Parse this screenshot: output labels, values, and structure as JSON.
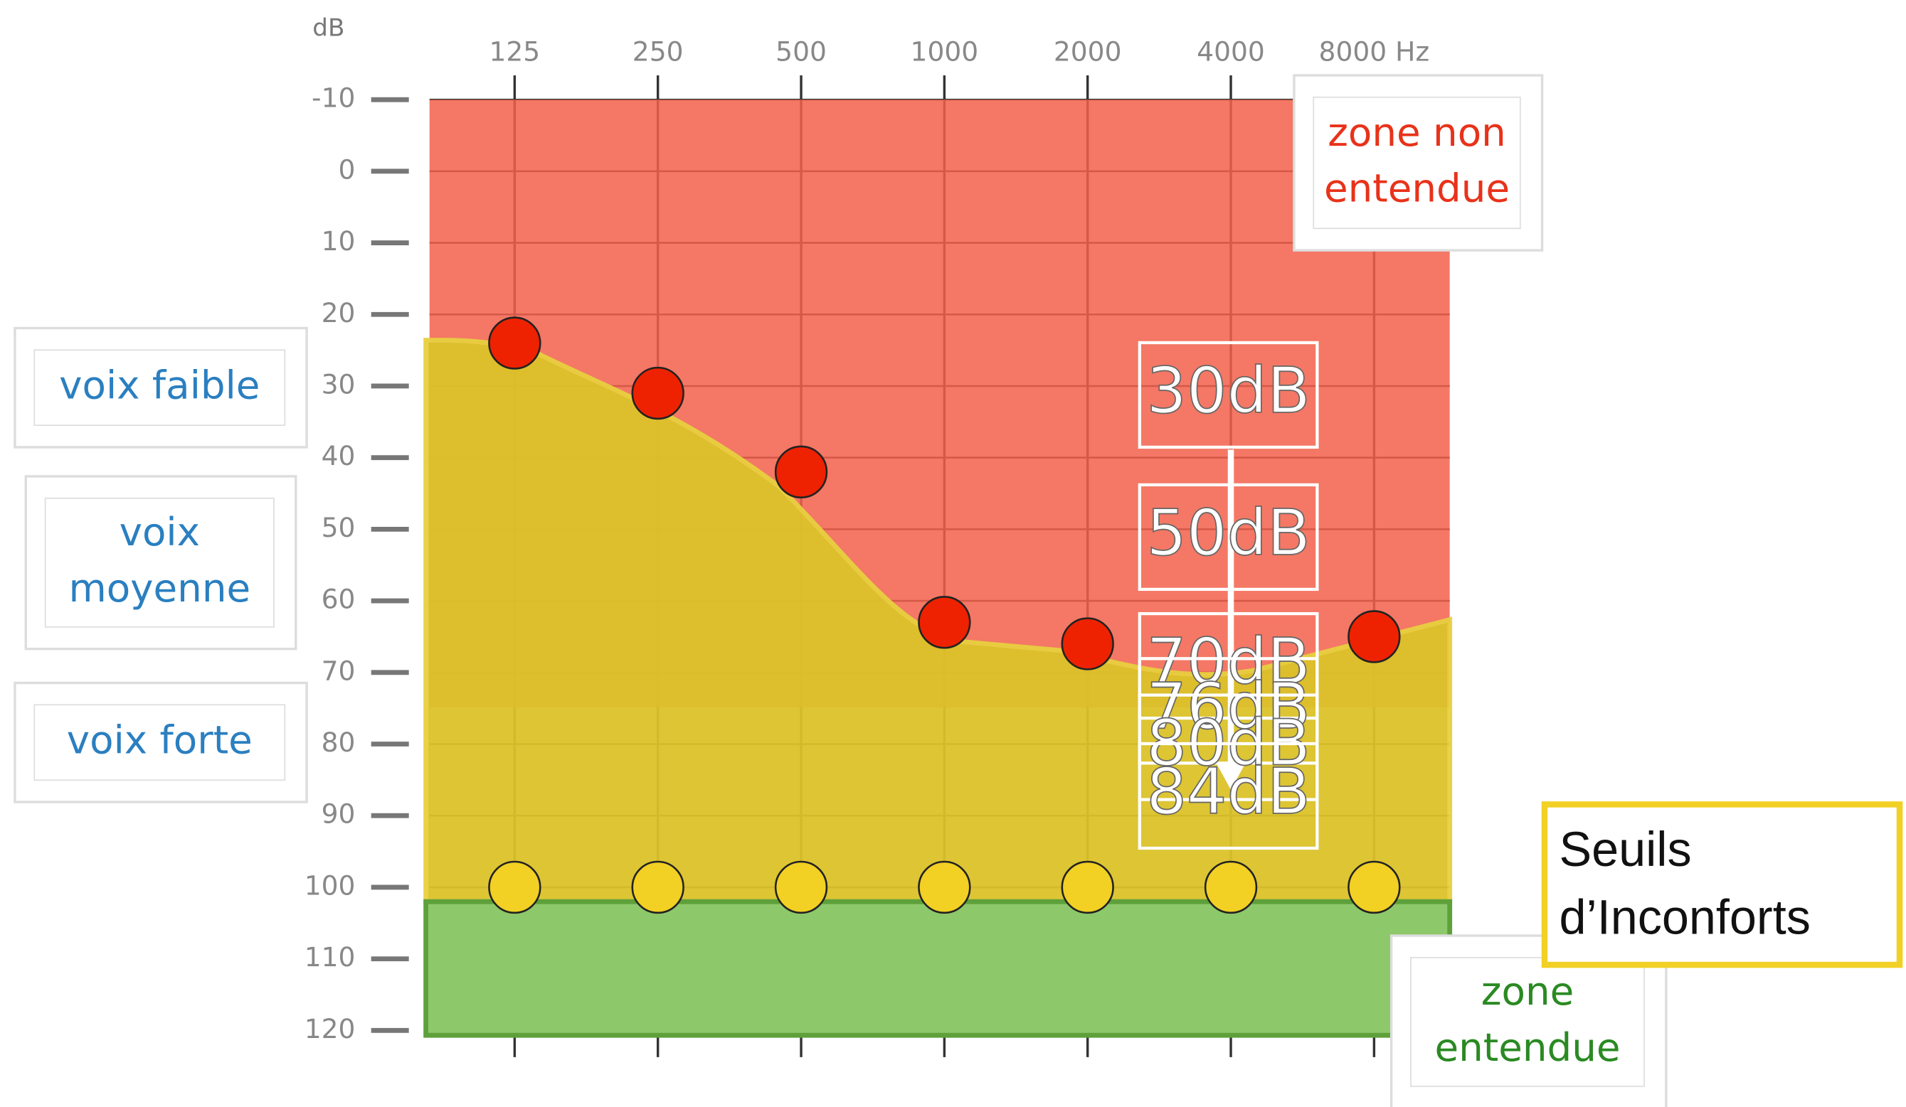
{
  "chart_data": {
    "type": "audiogram",
    "y_label": "dB",
    "categories": [
      "125",
      "250",
      "500",
      "1000",
      "2000",
      "4000",
      "8000 Hz"
    ],
    "ylim": [
      -10,
      120
    ],
    "yticks": [
      -10,
      0,
      10,
      20,
      30,
      40,
      50,
      60,
      70,
      80,
      90,
      100,
      110,
      120
    ],
    "grid": true,
    "series": [
      {
        "color": "#ee2200",
        "values": [
          24,
          31,
          42,
          63,
          66,
          null,
          65
        ]
      },
      {
        "name": "Seuils d’Inconforts",
        "color": "#f2d024",
        "values": [
          100,
          100,
          100,
          100,
          100,
          100,
          100
        ]
      }
    ],
    "side_labels": [
      [
        "voix faible"
      ],
      [
        "voix",
        "moyenne"
      ],
      [
        "voix forte"
      ],
      [
        "zone non",
        "entendue"
      ],
      [
        "zone",
        "entendue"
      ]
    ],
    "level_labels": [
      "30dB",
      "50dB",
      "70dB",
      "76dB",
      "80dB",
      "84dB"
    ]
  }
}
